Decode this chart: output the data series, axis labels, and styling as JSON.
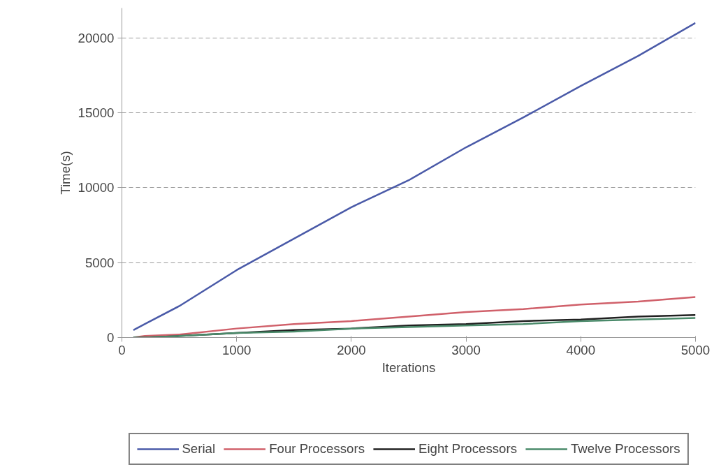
{
  "chart_data": {
    "type": "line",
    "xlabel": "Iterations",
    "ylabel": "Time(s)",
    "x": [
      100,
      200,
      500,
      1000,
      1500,
      2000,
      2500,
      3000,
      3500,
      4000,
      4500,
      5000
    ],
    "series": [
      {
        "name": "Serial",
        "color": "#4a5aa8",
        "values": [
          500,
          900,
          2100,
          4500,
          6600,
          8700,
          10500,
          12700,
          14700,
          16800,
          18800,
          21000
        ]
      },
      {
        "name": "Four Processors",
        "color": "#d0606a",
        "values": [
          0,
          100,
          200,
          600,
          900,
          1100,
          1400,
          1700,
          1900,
          2200,
          2400,
          2700
        ]
      },
      {
        "name": "Eight Processors",
        "color": "#202020",
        "values": [
          0,
          0,
          100,
          300,
          500,
          600,
          800,
          900,
          1100,
          1200,
          1400,
          1500
        ]
      },
      {
        "name": "Twelve Processors",
        "color": "#4a8a6a",
        "values": [
          0,
          0,
          100,
          300,
          400,
          600,
          700,
          800,
          900,
          1100,
          1200,
          1300
        ]
      }
    ],
    "xlim": [
      0,
      5000
    ],
    "xticks": [
      0,
      1000,
      2000,
      3000,
      4000,
      5000
    ],
    "ylim": [
      0,
      22000
    ],
    "yticks": [
      0,
      5000,
      10000,
      15000,
      20000
    ],
    "grid": "y",
    "legend": "bottom",
    "line_style": "solid",
    "marker": "none"
  }
}
